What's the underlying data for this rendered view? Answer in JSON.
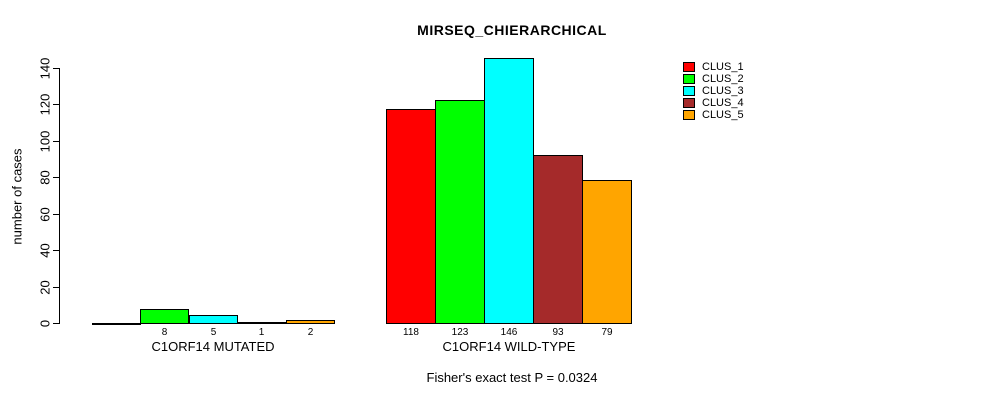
{
  "title": "MIRSEQ_CHIERARCHICAL",
  "y_axis": {
    "label": "number of cases",
    "ticks": [
      0,
      20,
      40,
      60,
      80,
      100,
      120,
      140
    ]
  },
  "footer": "Fisher's exact test P = 0.0324",
  "legend": {
    "position": "top-right",
    "items": [
      {
        "label": "CLUS_1",
        "color": "#FF0000"
      },
      {
        "label": "CLUS_2",
        "color": "#00FF00"
      },
      {
        "label": "CLUS_3",
        "color": "#00FFFF"
      },
      {
        "label": "CLUS_4",
        "color": "#A52A2A"
      },
      {
        "label": "CLUS_5",
        "color": "#FFA500"
      }
    ]
  },
  "chart_data": {
    "type": "bar",
    "title": "MIRSEQ_CHIERARCHICAL",
    "xlabel": "",
    "ylabel": "number of cases",
    "ylim": [
      0,
      140
    ],
    "grid": false,
    "legend_position": "top-right",
    "categories": [
      "C1ORF14 MUTATED",
      "C1ORF14 WILD-TYPE"
    ],
    "series": [
      {
        "name": "CLUS_1",
        "color": "#FF0000",
        "values": [
          0,
          118
        ]
      },
      {
        "name": "CLUS_2",
        "color": "#00FF00",
        "values": [
          8,
          123
        ]
      },
      {
        "name": "CLUS_3",
        "color": "#00FFFF",
        "values": [
          5,
          146
        ]
      },
      {
        "name": "CLUS_4",
        "color": "#A52A2A",
        "values": [
          1,
          93
        ]
      },
      {
        "name": "CLUS_5",
        "color": "#FFA500",
        "values": [
          2,
          79
        ]
      }
    ],
    "bar_value_labels": {
      "C1ORF14 MUTATED": [
        "",
        "8",
        "5",
        "1",
        "2"
      ],
      "C1ORF14 WILD-TYPE": [
        "118",
        "123",
        "146",
        "93",
        "79"
      ]
    },
    "annotation": "Fisher's exact test P = 0.0324"
  }
}
